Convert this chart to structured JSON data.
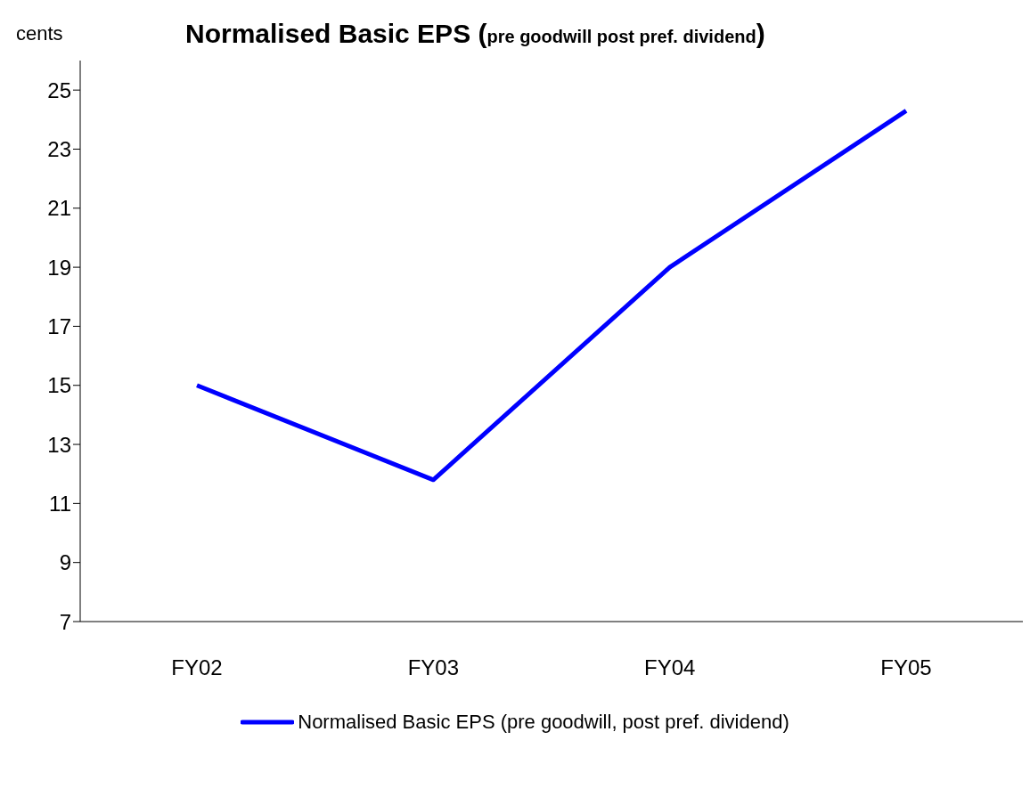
{
  "chart_data": {
    "type": "line",
    "title": "Normalised Basic EPS (pre goodwill post pref. dividend)",
    "ylabel": "cents",
    "categories": [
      "FY02",
      "FY03",
      "FY04",
      "FY05"
    ],
    "series": [
      {
        "name": "Normalised Basic EPS (pre goodwill, post pref. dividend)",
        "color": "#0000ff",
        "values": [
          15.0,
          11.8,
          19.0,
          24.3
        ]
      }
    ],
    "ylim": [
      7,
      26
    ],
    "yticks": [
      7,
      9,
      11,
      13,
      15,
      17,
      19,
      21,
      23,
      25
    ],
    "grid": false,
    "legend": "bottom",
    "marker": "none",
    "line_style": "solid"
  }
}
